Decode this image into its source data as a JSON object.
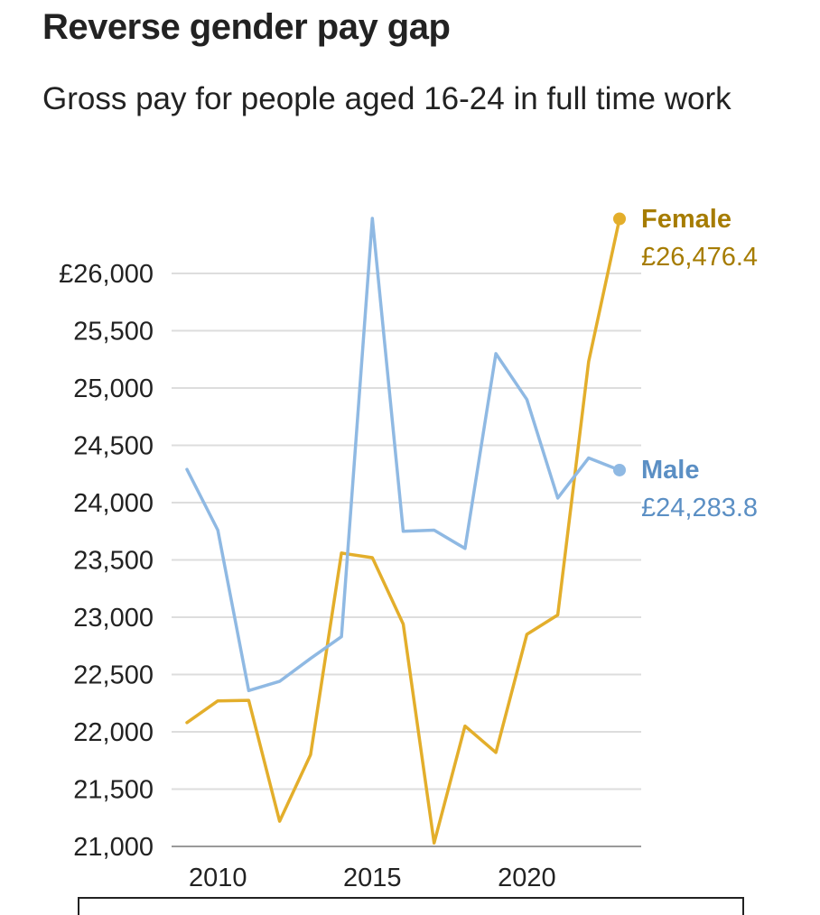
{
  "chart_data": {
    "type": "line",
    "title": "Reverse gender pay gap",
    "subtitle": "Gross pay for people aged 16-24 in full time work",
    "x": [
      2009,
      2010,
      2011,
      2012,
      2013,
      2014,
      2015,
      2016,
      2017,
      2018,
      2019,
      2020,
      2021,
      2022,
      2023
    ],
    "x_ticks": [
      2010,
      2015,
      2020
    ],
    "x_tick_labels": [
      "2010",
      "2015",
      "2020"
    ],
    "xlim": [
      2009,
      2023
    ],
    "ylim": [
      21000,
      26000
    ],
    "y_ticks": [
      21000,
      21500,
      22000,
      22500,
      23000,
      23500,
      24000,
      24500,
      25000,
      25500,
      26000
    ],
    "y_tick_labels": [
      "21,000",
      "21,500",
      "22,000",
      "22,500",
      "23,000",
      "23,500",
      "24,000",
      "24,500",
      "25,000",
      "25,500",
      "£26,000"
    ],
    "grid": true,
    "series": [
      {
        "name": "Female",
        "color": "#e3ae2b",
        "label_color": "#a67c00",
        "end_label": "£26,476.4",
        "values": [
          22080,
          22270,
          22275,
          21220,
          21800,
          23560,
          23520,
          22940,
          21030,
          22050,
          21820,
          22850,
          23020,
          25230,
          26476.4
        ]
      },
      {
        "name": "Male",
        "color": "#8fb9e3",
        "label_color": "#5b8fc4",
        "end_label": "£24,283.8",
        "values": [
          24290,
          23760,
          22360,
          22440,
          22640,
          22830,
          26480,
          23750,
          23760,
          23600,
          25300,
          24900,
          24040,
          24390,
          24283.8
        ]
      }
    ]
  }
}
